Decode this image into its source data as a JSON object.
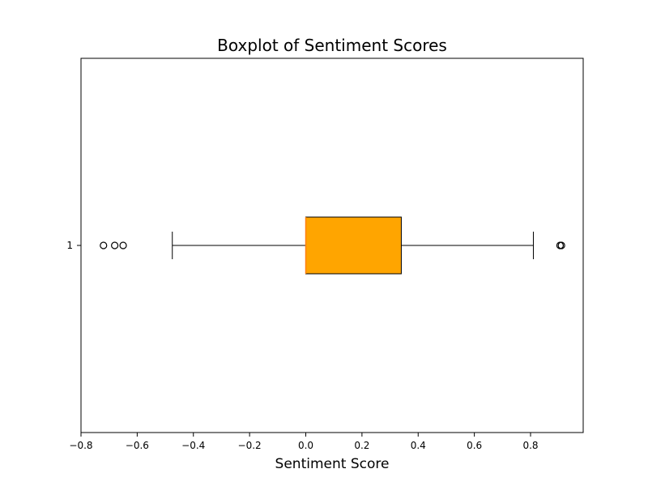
{
  "chart_data": {
    "type": "boxplot",
    "orientation": "horizontal",
    "title": "Boxplot of Sentiment Scores",
    "xlabel": "Sentiment Score",
    "ylabel": "",
    "xlim": [
      -0.8,
      1.0
    ],
    "xticks": [
      -0.8,
      -0.6,
      -0.4,
      -0.2,
      0.0,
      0.2,
      0.4,
      0.6,
      0.8
    ],
    "xtick_labels": [
      "−0.8",
      "−0.6",
      "−0.4",
      "−0.2",
      "0.0",
      "0.2",
      "0.4",
      "0.6",
      "0.8"
    ],
    "yticks": [
      "1"
    ],
    "grid": false,
    "boxes": [
      {
        "category": "1",
        "whisker_low": -0.475,
        "q1": 0.0,
        "median": 0.0,
        "q3": 0.34,
        "whisker_high": 0.81,
        "outliers": [
          -0.72,
          -0.68,
          -0.65,
          0.905,
          0.91
        ]
      }
    ],
    "colors": {
      "box_fill": "#ffa500",
      "median_line": "#ff7f0e",
      "outline": "#000000"
    }
  }
}
